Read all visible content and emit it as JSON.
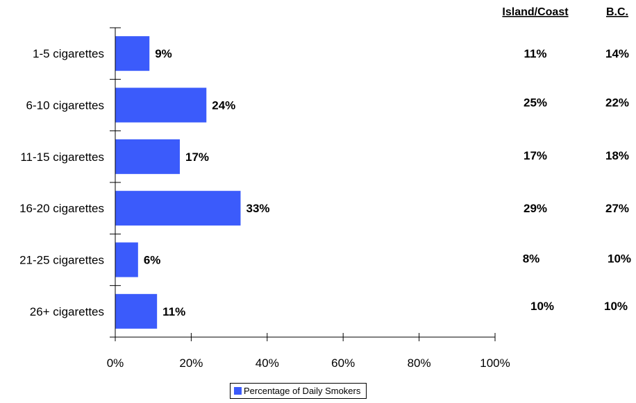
{
  "chart_data": {
    "type": "bar",
    "orientation": "horizontal",
    "categories": [
      "1-5 cigarettes",
      "6-10 cigarettes",
      "11-15 cigarettes",
      "16-20 cigarettes",
      "21-25 cigarettes",
      "26+ cigarettes"
    ],
    "series": [
      {
        "name": "Percentage of Daily Smokers",
        "values": [
          9,
          24,
          17,
          33,
          6,
          11
        ],
        "color": "#3b5bfb"
      }
    ],
    "data_labels": [
      "9%",
      "24%",
      "17%",
      "33%",
      "6%",
      "11%"
    ],
    "xlim": [
      0,
      100
    ],
    "xticks": [
      0,
      20,
      40,
      60,
      80,
      100
    ],
    "xtick_labels": [
      "0%",
      "20%",
      "40%",
      "60%",
      "80%",
      "100%"
    ],
    "grid": false,
    "legend": {
      "placement": "bottom-center",
      "label": "Percentage of Daily Smokers"
    },
    "comparison_columns": [
      {
        "header": "Island/Coast",
        "values": [
          "11%",
          "25%",
          "17%",
          "29%",
          "8%",
          "10%"
        ]
      },
      {
        "header": "B.C.",
        "values": [
          "14%",
          "22%",
          "18%",
          "27%",
          "10%",
          "10%"
        ]
      }
    ]
  }
}
